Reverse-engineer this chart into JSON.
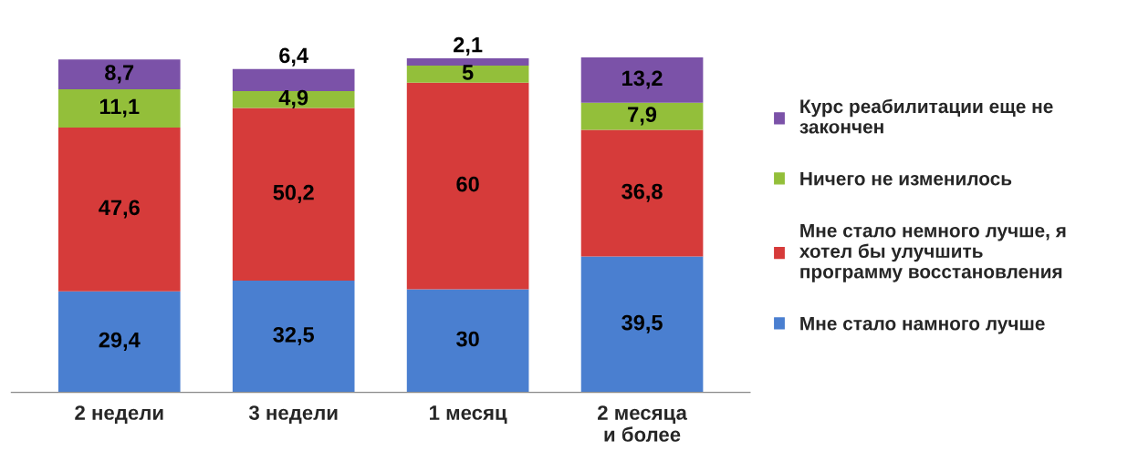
{
  "chart_data": {
    "type": "bar",
    "stacked": true,
    "legend": "right",
    "grid": false,
    "tick_labels": "x",
    "categories": [
      "2 недели",
      "3 недели",
      "1 месяц",
      "2 месяца и более"
    ],
    "series": [
      {
        "name": "Мне стало намного лучше",
        "color": "#4a7fd0",
        "values": [
          29.4,
          32.5,
          30,
          39.5
        ],
        "value_labels": [
          "29,4",
          "32,5",
          "30",
          "39,5"
        ]
      },
      {
        "name": "Мне стало немного лучше, я хотел бы улучшить программу восстановления",
        "color": "#d63b3a",
        "values": [
          47.6,
          50.2,
          60,
          36.8
        ],
        "value_labels": [
          "47,6",
          "50,2",
          "60",
          "36,8"
        ]
      },
      {
        "name": "Ничего не изменилось",
        "color": "#93bf3a",
        "values": [
          11.1,
          4.9,
          5,
          7.9
        ],
        "value_labels": [
          "11,1",
          "4,9",
          "5",
          "7,9"
        ]
      },
      {
        "name": "Курс реабилитации еще не закончен",
        "color": "#7b52a8",
        "values": [
          8.7,
          6.4,
          2.1,
          13.2
        ],
        "value_labels": [
          "8,7",
          "6,4",
          "2,1",
          "13,2"
        ]
      }
    ]
  }
}
